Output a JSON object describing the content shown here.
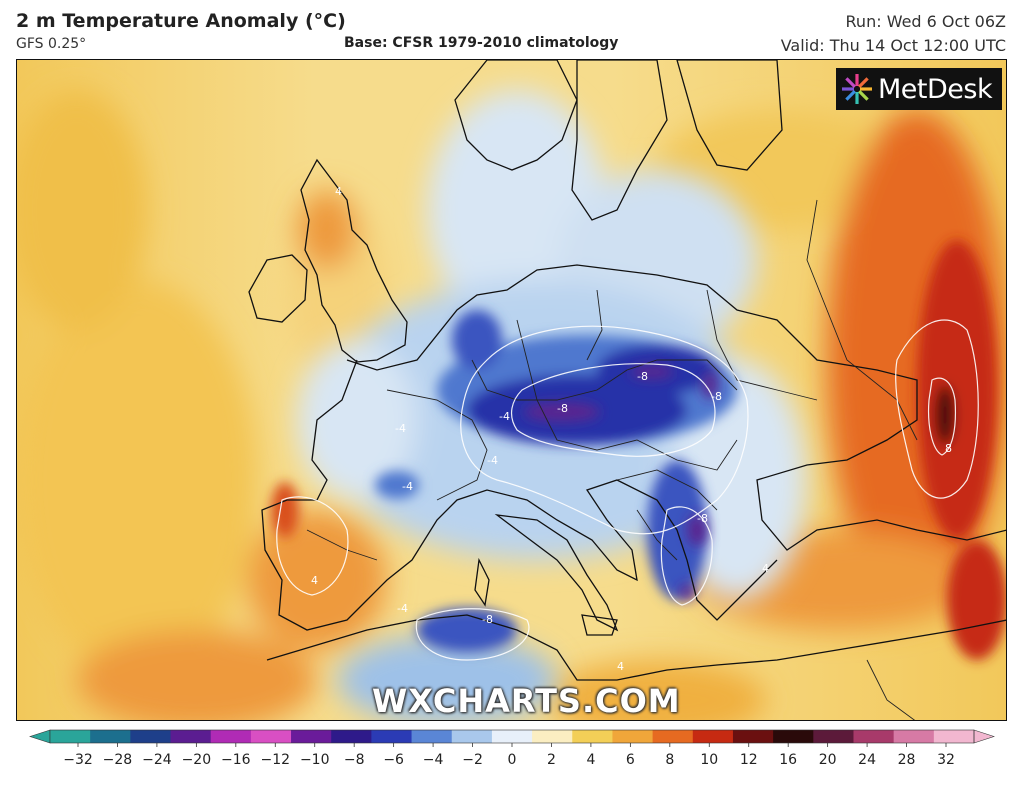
{
  "header": {
    "title": "2 m Temperature Anomaly (°C)",
    "model": "GFS 0.25°",
    "base": "Base: CFSR 1979-2010 climatology",
    "run": "Run: Wed 6 Oct 06Z",
    "valid": "Valid: Thu 14 Oct 12:00 UTC"
  },
  "logo": {
    "text": "MetDesk",
    "icon": "metdesk-star-icon"
  },
  "watermark": "WXCHARTS.COM",
  "colorbar": {
    "ticks": [
      "−32",
      "−28",
      "−24",
      "−20",
      "−16",
      "−12",
      "−10",
      "−8",
      "−6",
      "−4",
      "−2",
      "0",
      "2",
      "4",
      "6",
      "8",
      "10",
      "12",
      "16",
      "20",
      "24",
      "28",
      "32"
    ],
    "colors": [
      "#2aa59a",
      "#1c6f8e",
      "#1e3f8a",
      "#5b1d91",
      "#b02bb5",
      "#d94fc3",
      "#6a1b9a",
      "#2e1a8a",
      "#2b3bb5",
      "#5a86d6",
      "#a9c8ec",
      "#e8f0fa",
      "#fbeec2",
      "#f3cf57",
      "#f0a63a",
      "#e66a21",
      "#c62a12",
      "#6b1010",
      "#2a0a0a",
      "#5c1a3a",
      "#a83a6a",
      "#d77aa5",
      "#f2b7d0"
    ]
  },
  "map": {
    "contour_labels": [
      "4",
      "4",
      "-4",
      "-4",
      "-8",
      "-8",
      "-8",
      "-8",
      "-4",
      "-4",
      "-8",
      "4",
      "-4",
      "4",
      "8"
    ],
    "colors": {
      "warm_yellow": "#f2c85a",
      "light_yellow": "#f6dc8c",
      "orange": "#ee9a3c",
      "red": "#d9501e",
      "dark_red": "#8a1a10",
      "pale_blue": "#d8e6f4",
      "light_blue": "#9ec1e8",
      "mid_blue": "#4f78cf",
      "deep_blue": "#2730a8",
      "violet": "#5a2590"
    }
  }
}
